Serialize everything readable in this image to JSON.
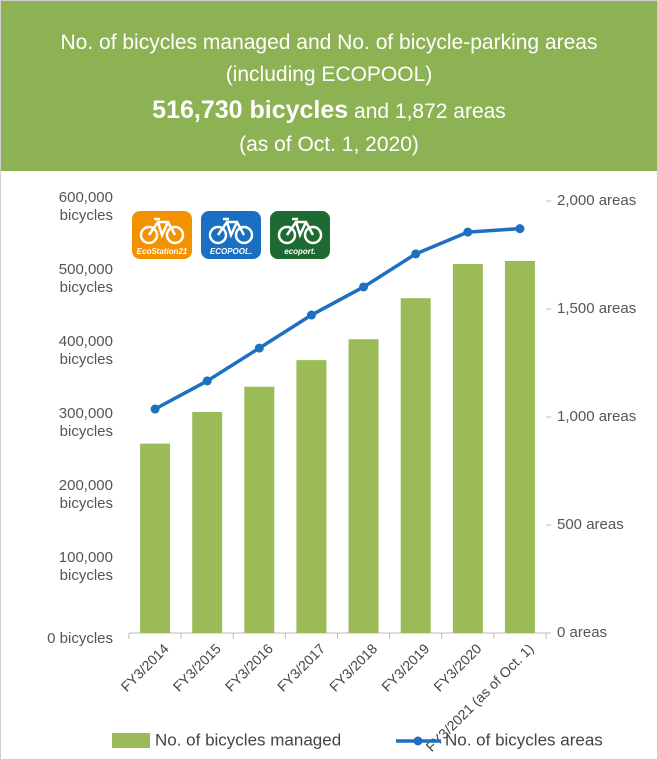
{
  "chart_data": {
    "type": "bar_line",
    "title": "No. of bicycles managed and No. of bicycle-parking areas",
    "subtitle": "(including ECOPOOL)",
    "headline": {
      "bold": "516,730 bicycles",
      "rest": "and 1,872 areas"
    },
    "date_note": "(as of Oct. 1, 2020)",
    "logos": [
      {
        "label": "EcoStation21",
        "color": "#f39200"
      },
      {
        "label": "ECOPOOL.",
        "color": "#1a6fc0"
      },
      {
        "label": "ecoport.",
        "color": "#1d6b32"
      }
    ],
    "categories": [
      "FY3/2014",
      "FY3/2015",
      "FY3/2016",
      "FY3/2017",
      "FY3/2018",
      "FY3/2019",
      "FY3/2020",
      "FY3/2021 (as of Oct. 1)"
    ],
    "series": [
      {
        "name": "No. of bicycles managed",
        "color": "#9bbb59",
        "values": [
          263000,
          307000,
          342000,
          379000,
          408000,
          465000,
          512500,
          516730
        ]
      },
      {
        "name": "No. of bicycles areas",
        "color": "#1f6fc1",
        "axis": "y2",
        "values": [
          1037,
          1167,
          1319,
          1472,
          1602,
          1755,
          1856,
          1872
        ]
      }
    ],
    "ylim": [
      0,
      600000
    ],
    "yticks": [
      {
        "value": 0,
        "label": "0 bicycles"
      },
      {
        "value": 100000,
        "label": "100,000 bicycles"
      },
      {
        "value": 200000,
        "label": "200,000 bicycles"
      },
      {
        "value": 300000,
        "label": "300,000 bicycles"
      },
      {
        "value": 400000,
        "label": "400,000 bicycles"
      },
      {
        "value": 500000,
        "label": "500,000 bicycles"
      },
      {
        "value": 600000,
        "label": "600,000 bicycles"
      }
    ],
    "y2lim": [
      0,
      2000
    ],
    "y2ticks": [
      {
        "value": 0,
        "label": "0 areas"
      },
      {
        "value": 500,
        "label": "500 areas"
      },
      {
        "value": 1000,
        "label": "1,000 areas"
      },
      {
        "value": 1500,
        "label": "1,500 areas"
      },
      {
        "value": 2000,
        "label": "2,000 areas"
      }
    ]
  }
}
